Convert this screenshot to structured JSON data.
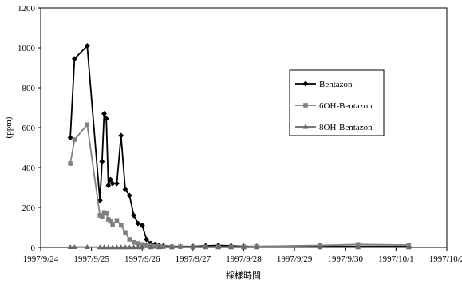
{
  "chart_data": {
    "type": "line",
    "title": "",
    "xlabel": "採樣時間",
    "ylabel": "(ppm)",
    "ylim": [
      0,
      1200
    ],
    "yticks": [
      0,
      200,
      400,
      600,
      800,
      1000,
      1200
    ],
    "xlim": [
      "1997-09-24T00:00",
      "1997-10-02T00:00"
    ],
    "xtick_values": [
      "1997-09-24",
      "1997-09-25",
      "1997-09-26",
      "1997-09-27",
      "1997-09-28",
      "1997-09-29",
      "1997-09-30",
      "1997-10-01",
      "1997-10-02"
    ],
    "xtick_labels": [
      "1997/9/24",
      "1997/9/25",
      "1997/9/26",
      "1997/9/27",
      "1997/9/28",
      "1997/9/29",
      "1997/9/30",
      "1997/10/1",
      "1997/10/2"
    ],
    "grid": false,
    "legend_position": "right",
    "series": [
      {
        "name": "Bentazon",
        "color": "#000000",
        "marker": "diamond",
        "points": [
          [
            "1997-09-24T14:00",
            550
          ],
          [
            "1997-09-24T16:00",
            945
          ],
          [
            "1997-09-24T22:00",
            1010
          ],
          [
            "1997-09-25T04:00",
            235
          ],
          [
            "1997-09-25T05:00",
            430
          ],
          [
            "1997-09-25T06:00",
            670
          ],
          [
            "1997-09-25T07:00",
            645
          ],
          [
            "1997-09-25T08:00",
            310
          ],
          [
            "1997-09-25T09:00",
            340
          ],
          [
            "1997-09-25T10:00",
            320
          ],
          [
            "1997-09-25T12:00",
            320
          ],
          [
            "1997-09-25T14:00",
            560
          ],
          [
            "1997-09-25T16:00",
            290
          ],
          [
            "1997-09-25T18:00",
            260
          ],
          [
            "1997-09-25T20:00",
            160
          ],
          [
            "1997-09-25T22:00",
            120
          ],
          [
            "1997-09-26T00:00",
            110
          ],
          [
            "1997-09-26T02:00",
            40
          ],
          [
            "1997-09-26T04:00",
            20
          ],
          [
            "1997-09-26T06:00",
            15
          ],
          [
            "1997-09-26T08:00",
            10
          ],
          [
            "1997-09-26T10:00",
            8
          ],
          [
            "1997-09-26T14:00",
            5
          ],
          [
            "1997-09-26T18:00",
            5
          ],
          [
            "1997-09-27T00:00",
            5
          ],
          [
            "1997-09-27T06:00",
            8
          ],
          [
            "1997-09-27T12:00",
            10
          ],
          [
            "1997-09-27T18:00",
            8
          ],
          [
            "1997-09-28T00:00",
            5
          ],
          [
            "1997-09-28T06:00",
            5
          ],
          [
            "1997-09-29T12:00",
            5
          ],
          [
            "1997-09-30T06:00",
            5
          ],
          [
            "1997-10-01T06:00",
            5
          ]
        ]
      },
      {
        "name": "6OH-Bentazon",
        "color": "#808080",
        "marker": "square",
        "points": [
          [
            "1997-09-24T14:00",
            420
          ],
          [
            "1997-09-24T16:00",
            540
          ],
          [
            "1997-09-24T22:00",
            615
          ],
          [
            "1997-09-25T04:00",
            160
          ],
          [
            "1997-09-25T05:00",
            155
          ],
          [
            "1997-09-25T06:00",
            175
          ],
          [
            "1997-09-25T07:00",
            170
          ],
          [
            "1997-09-25T08:00",
            140
          ],
          [
            "1997-09-25T09:00",
            130
          ],
          [
            "1997-09-25T10:00",
            115
          ],
          [
            "1997-09-25T12:00",
            135
          ],
          [
            "1997-09-25T14:00",
            110
          ],
          [
            "1997-09-25T16:00",
            75
          ],
          [
            "1997-09-25T18:00",
            40
          ],
          [
            "1997-09-25T20:00",
            25
          ],
          [
            "1997-09-25T22:00",
            20
          ],
          [
            "1997-09-26T00:00",
            15
          ],
          [
            "1997-09-26T02:00",
            10
          ],
          [
            "1997-09-26T04:00",
            8
          ],
          [
            "1997-09-26T06:00",
            5
          ],
          [
            "1997-09-26T08:00",
            5
          ],
          [
            "1997-09-26T10:00",
            3
          ],
          [
            "1997-09-26T14:00",
            3
          ],
          [
            "1997-09-26T18:00",
            3
          ],
          [
            "1997-09-27T00:00",
            3
          ],
          [
            "1997-09-27T06:00",
            3
          ],
          [
            "1997-09-27T12:00",
            3
          ],
          [
            "1997-09-27T18:00",
            3
          ],
          [
            "1997-09-28T00:00",
            3
          ],
          [
            "1997-09-28T06:00",
            5
          ],
          [
            "1997-09-29T12:00",
            10
          ],
          [
            "1997-09-30T06:00",
            15
          ],
          [
            "1997-10-01T06:00",
            12
          ]
        ]
      },
      {
        "name": "8OH-Bentazon",
        "color": "#666666",
        "marker": "triangle",
        "points": [
          [
            "1997-09-24T14:00",
            2
          ],
          [
            "1997-09-24T16:00",
            2
          ],
          [
            "1997-09-24T22:00",
            2
          ],
          [
            "1997-09-25T04:00",
            1
          ],
          [
            "1997-09-25T06:00",
            1
          ],
          [
            "1997-09-25T08:00",
            1
          ],
          [
            "1997-09-25T10:00",
            1
          ],
          [
            "1997-09-25T12:00",
            1
          ],
          [
            "1997-09-25T14:00",
            1
          ],
          [
            "1997-09-25T16:00",
            1
          ],
          [
            "1997-09-25T18:00",
            1
          ],
          [
            "1997-09-25T20:00",
            1
          ],
          [
            "1997-09-25T22:00",
            1
          ],
          [
            "1997-09-26T00:00",
            1
          ],
          [
            "1997-09-26T04:00",
            1
          ],
          [
            "1997-09-26T08:00",
            1
          ],
          [
            "1997-09-26T14:00",
            1
          ],
          [
            "1997-09-27T00:00",
            1
          ],
          [
            "1997-09-27T06:00",
            1
          ],
          [
            "1997-09-27T12:00",
            1
          ],
          [
            "1997-09-27T18:00",
            1
          ],
          [
            "1997-09-28T00:00",
            1
          ],
          [
            "1997-09-28T06:00",
            1
          ],
          [
            "1997-09-29T12:00",
            1
          ],
          [
            "1997-09-30T06:00",
            1
          ],
          [
            "1997-10-01T06:00",
            1
          ]
        ]
      }
    ]
  }
}
